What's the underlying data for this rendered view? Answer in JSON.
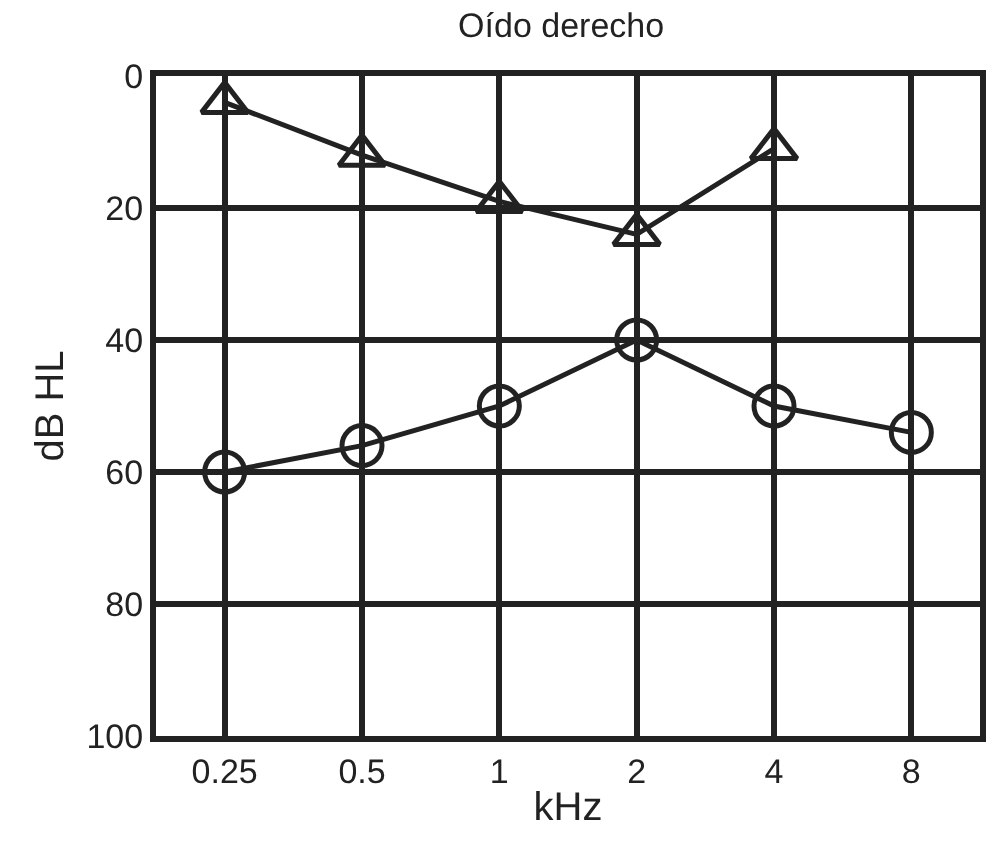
{
  "chart_data": {
    "type": "line",
    "title": "Oído derecho",
    "xlabel": "kHz",
    "ylabel": "dB HL",
    "categories": [
      "0.25",
      "0.5",
      "1",
      "2",
      "4",
      "8"
    ],
    "series": [
      {
        "color": "#222222",
        "marker": "triangle",
        "values": [
          4,
          12,
          19,
          24,
          11,
          null
        ]
      },
      {
        "color": "#222222",
        "marker": "circle",
        "values": [
          60,
          56,
          50,
          40,
          50,
          54
        ]
      }
    ],
    "ylim": [
      100,
      0
    ],
    "yticks": [
      0,
      20,
      40,
      60,
      80,
      100
    ],
    "grid": true
  }
}
